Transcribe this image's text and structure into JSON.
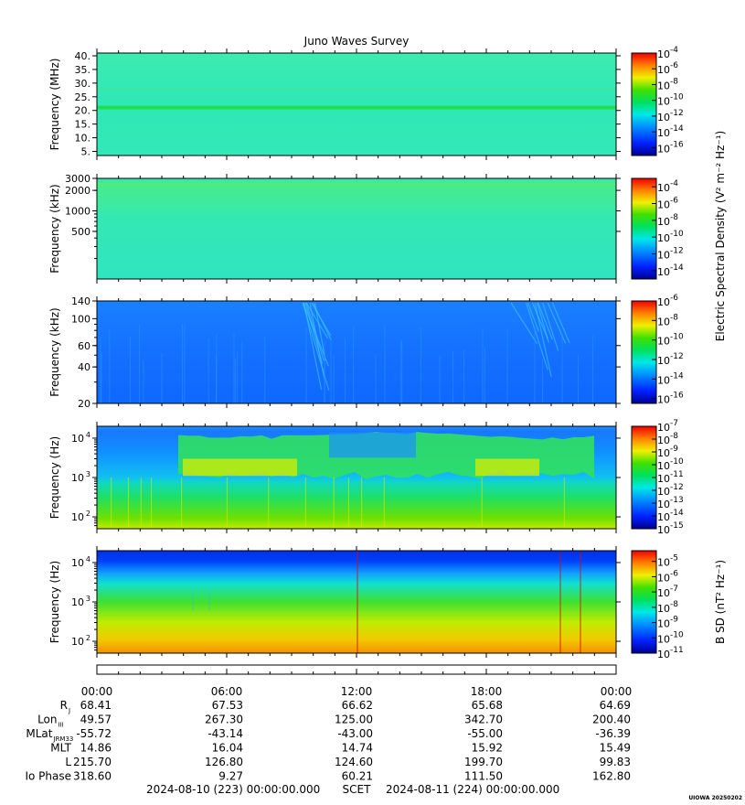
{
  "chart_data": {
    "type": "heatmap",
    "title": "Juno Waves Survey",
    "footer": {
      "start": "2024-08-10 (223) 00:00:00.000",
      "scet": "SCET",
      "end": "2024-08-11 (224) 00:00:00.000",
      "credit": "UIOWA 20250202"
    },
    "shared_colorbar_label": "Electric Spectral Density (V² m⁻² Hz⁻¹)",
    "x_ticks": [
      "00:00",
      "06:00",
      "12:00",
      "18:00",
      "00:00"
    ],
    "panels": [
      {
        "ylabel": "Frequency (MHz)",
        "yscale": "linear",
        "ylim": [
          3.5,
          41
        ],
        "yticks": [
          {
            "v": 5,
            "label": "5."
          },
          {
            "v": 10,
            "label": "10."
          },
          {
            "v": 15,
            "label": "15."
          },
          {
            "v": 20,
            "label": "20."
          },
          {
            "v": 25,
            "label": "25."
          },
          {
            "v": 30,
            "label": "30."
          },
          {
            "v": 35,
            "label": "35."
          },
          {
            "v": 40,
            "label": "40."
          }
        ],
        "colorbar": {
          "exp_min": -17,
          "exp_max": -4,
          "labels": [
            "-4",
            "-6",
            "-8",
            "-10",
            "-12",
            "-14",
            "-16"
          ]
        }
      },
      {
        "ylabel": "Frequency (kHz)",
        "yscale": "log",
        "ylim": [
          100,
          3000
        ],
        "yticks": [
          {
            "v": 500,
            "label": "500"
          },
          {
            "v": 1000,
            "label": "1000"
          },
          {
            "v": 2000,
            "label": "2000"
          },
          {
            "v": 3000,
            "label": "3000"
          }
        ],
        "colorbar": {
          "exp_min": -15,
          "exp_max": -3,
          "labels": [
            "-4",
            "-6",
            "-8",
            "-10",
            "-12",
            "-14"
          ]
        }
      },
      {
        "ylabel": "Frequency (kHz)",
        "yscale": "log",
        "ylim": [
          20,
          140
        ],
        "yticks": [
          {
            "v": 20,
            "label": "20"
          },
          {
            "v": 40,
            "label": "40"
          },
          {
            "v": 60,
            "label": "60"
          },
          {
            "v": 100,
            "label": "100"
          },
          {
            "v": 140,
            "label": "140"
          }
        ],
        "colorbar": {
          "exp_min": -16.5,
          "exp_max": -6,
          "labels": [
            "-6",
            "-8",
            "-10",
            "-12",
            "-14",
            "-16"
          ]
        }
      },
      {
        "ylabel": "Frequency (Hz)",
        "yscale": "log",
        "ylim": [
          50,
          20000
        ],
        "yticks": [
          {
            "v": 100,
            "label": "10",
            "exp": "2"
          },
          {
            "v": 1000,
            "label": "10",
            "exp": "3"
          },
          {
            "v": 10000,
            "label": "10",
            "exp": "4"
          }
        ],
        "colorbar": {
          "exp_min": -15,
          "exp_max": -7,
          "labels": [
            "-7",
            "-8",
            "-9",
            "-10",
            "-11",
            "-12",
            "-13",
            "-14",
            "-15"
          ]
        }
      },
      {
        "ylabel": "Frequency (Hz)",
        "yscale": "log",
        "ylim": [
          50,
          20000
        ],
        "yticks": [
          {
            "v": 100,
            "label": "10",
            "exp": "2"
          },
          {
            "v": 1000,
            "label": "10",
            "exp": "3"
          },
          {
            "v": 10000,
            "label": "10",
            "exp": "4"
          }
        ],
        "colorbar": {
          "exp_min": -11,
          "exp_max": -4.3,
          "labels": [
            "-5",
            "-6",
            "-7",
            "-8",
            "-9",
            "-10",
            "-11"
          ],
          "label": "B SD (nT² Hz⁻¹)"
        }
      }
    ],
    "ephemeris": {
      "rows": [
        {
          "label": "R",
          "sub": "J",
          "values": [
            "68.41",
            "67.53",
            "66.62",
            "65.68",
            "64.69"
          ]
        },
        {
          "label": "Lon",
          "sub": "III",
          "values": [
            "49.57",
            "267.30",
            "125.00",
            "342.70",
            "200.40"
          ]
        },
        {
          "label": "MLat",
          "sub": "JRM33",
          "values": [
            "-55.72",
            "-43.14",
            "-43.00",
            "-55.00",
            "-36.39"
          ]
        },
        {
          "label": "MLT",
          "sub": "",
          "values": [
            "14.86",
            "16.04",
            "14.74",
            "15.92",
            "15.49"
          ]
        },
        {
          "label": "L",
          "sub": "",
          "values": [
            "215.70",
            "126.80",
            "124.60",
            "199.70",
            "99.83"
          ]
        },
        {
          "label": "Io Phase",
          "sub": "",
          "values": [
            "318.60",
            "9.27",
            "60.21",
            "111.50",
            "162.80"
          ]
        }
      ]
    }
  }
}
